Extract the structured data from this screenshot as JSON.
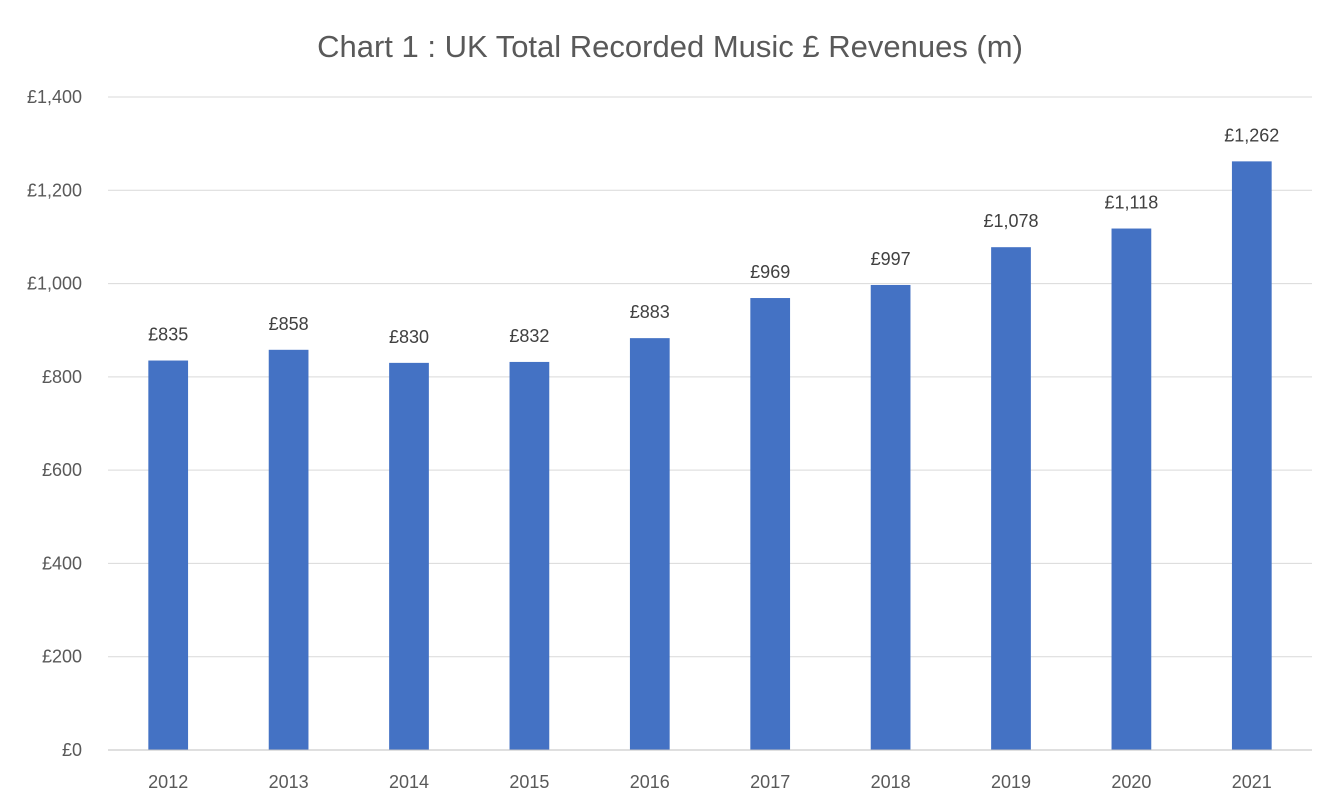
{
  "chart_data": {
    "type": "bar",
    "title": "Chart 1 : UK Total Recorded Music £ Revenues (m)",
    "xlabel": "",
    "ylabel": "",
    "categories": [
      "2012",
      "2013",
      "2014",
      "2015",
      "2016",
      "2017",
      "2018",
      "2019",
      "2020",
      "2021"
    ],
    "values": [
      835,
      858,
      830,
      832,
      883,
      969,
      997,
      1078,
      1118,
      1262
    ],
    "data_labels": [
      "£835",
      "£858",
      "£830",
      "£832",
      "£883",
      "£969",
      "£997",
      "£1,078",
      "£1,118",
      "£1,262"
    ],
    "ylim": [
      0,
      1400
    ],
    "y_ticks": [
      0,
      200,
      400,
      600,
      800,
      1000,
      1200,
      1400
    ],
    "y_tick_labels": [
      "£0",
      "£200",
      "£400",
      "£600",
      "£800",
      "£1,000",
      "£1,200",
      "£1,400"
    ],
    "grid": true,
    "legend": "none",
    "colors": {
      "bar": "#4472C4",
      "grid": "#D9D9D9",
      "axis": "#BFBFBF",
      "text": "#595959",
      "label": "#404040"
    }
  }
}
